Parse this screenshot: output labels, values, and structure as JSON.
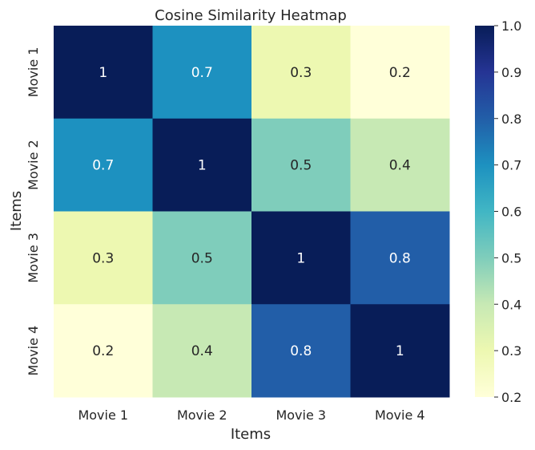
{
  "chart_data": {
    "type": "heatmap",
    "title": "Cosine Similarity Heatmap",
    "xlabel": "Items",
    "ylabel": "Items",
    "x_categories": [
      "Movie 1",
      "Movie 2",
      "Movie 3",
      "Movie 4"
    ],
    "y_categories": [
      "Movie 1",
      "Movie 2",
      "Movie 3",
      "Movie 4"
    ],
    "values": [
      [
        1.0,
        0.7,
        0.3,
        0.2
      ],
      [
        0.7,
        1.0,
        0.5,
        0.4
      ],
      [
        0.3,
        0.5,
        1.0,
        0.8
      ],
      [
        0.2,
        0.4,
        0.8,
        1.0
      ]
    ],
    "annotations": [
      [
        "1",
        "0.7",
        "0.3",
        "0.2"
      ],
      [
        "0.7",
        "1",
        "0.5",
        "0.4"
      ],
      [
        "0.3",
        "0.5",
        "1",
        "0.8"
      ],
      [
        "0.2",
        "0.4",
        "0.8",
        "1"
      ]
    ],
    "colormap": "YlGnBu",
    "colorbar": {
      "range": [
        0.2,
        1.0
      ],
      "ticks": [
        "0.2",
        "0.3",
        "0.4",
        "0.5",
        "0.6",
        "0.7",
        "0.8",
        "0.9",
        "1.0"
      ]
    },
    "grid": false
  }
}
